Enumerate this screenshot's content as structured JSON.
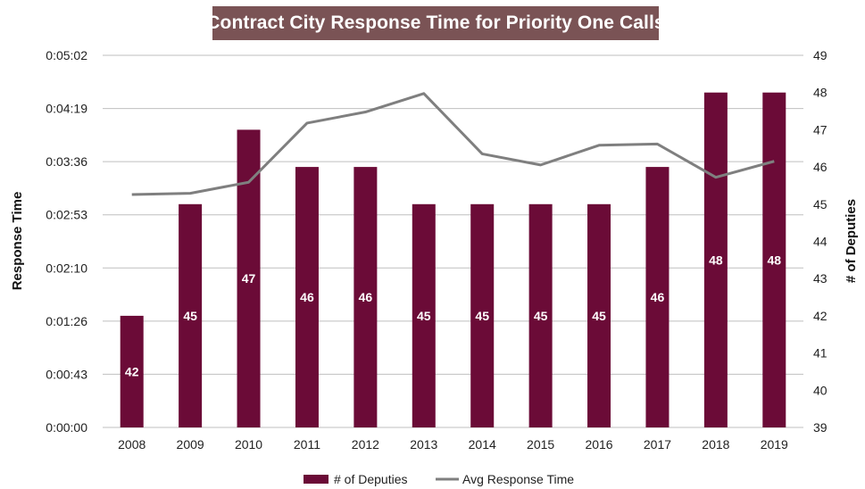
{
  "chart_data": {
    "type": "bar",
    "title": "Contract City Response Time for Priority One Calls",
    "categories": [
      "2008",
      "2009",
      "2010",
      "2011",
      "2012",
      "2013",
      "2014",
      "2015",
      "2016",
      "2017",
      "2018",
      "2019"
    ],
    "series": [
      {
        "name": "# of Deputies",
        "type": "bar",
        "axis": "right",
        "color": "#6b0b37",
        "values": [
          42,
          45,
          47,
          46,
          46,
          45,
          45,
          45,
          45,
          46,
          48,
          48
        ],
        "labels": [
          "42",
          "45",
          "47",
          "46",
          "46",
          "45",
          "45",
          "45",
          "45",
          "46",
          "48",
          "48"
        ]
      },
      {
        "name": "Avg Response Time",
        "type": "line",
        "axis": "left",
        "color": "#7f7f7f",
        "values_seconds": [
          189,
          190,
          199,
          247,
          256,
          271,
          222,
          213,
          229,
          230,
          203,
          216
        ]
      }
    ],
    "ylabel": "Response Time",
    "y2label": "# of Deputies",
    "y_ticks": [
      "0:00:00",
      "0:00:43",
      "0:01:26",
      "0:02:10",
      "0:02:53",
      "0:03:36",
      "0:04:19",
      "0:05:02"
    ],
    "ylim_seconds": [
      0,
      302
    ],
    "y2_ticks": [
      "39",
      "40",
      "41",
      "42",
      "43",
      "44",
      "45",
      "46",
      "47",
      "48",
      "49"
    ],
    "y2lim": [
      39,
      49
    ],
    "grid": true,
    "legend": "bottom"
  }
}
